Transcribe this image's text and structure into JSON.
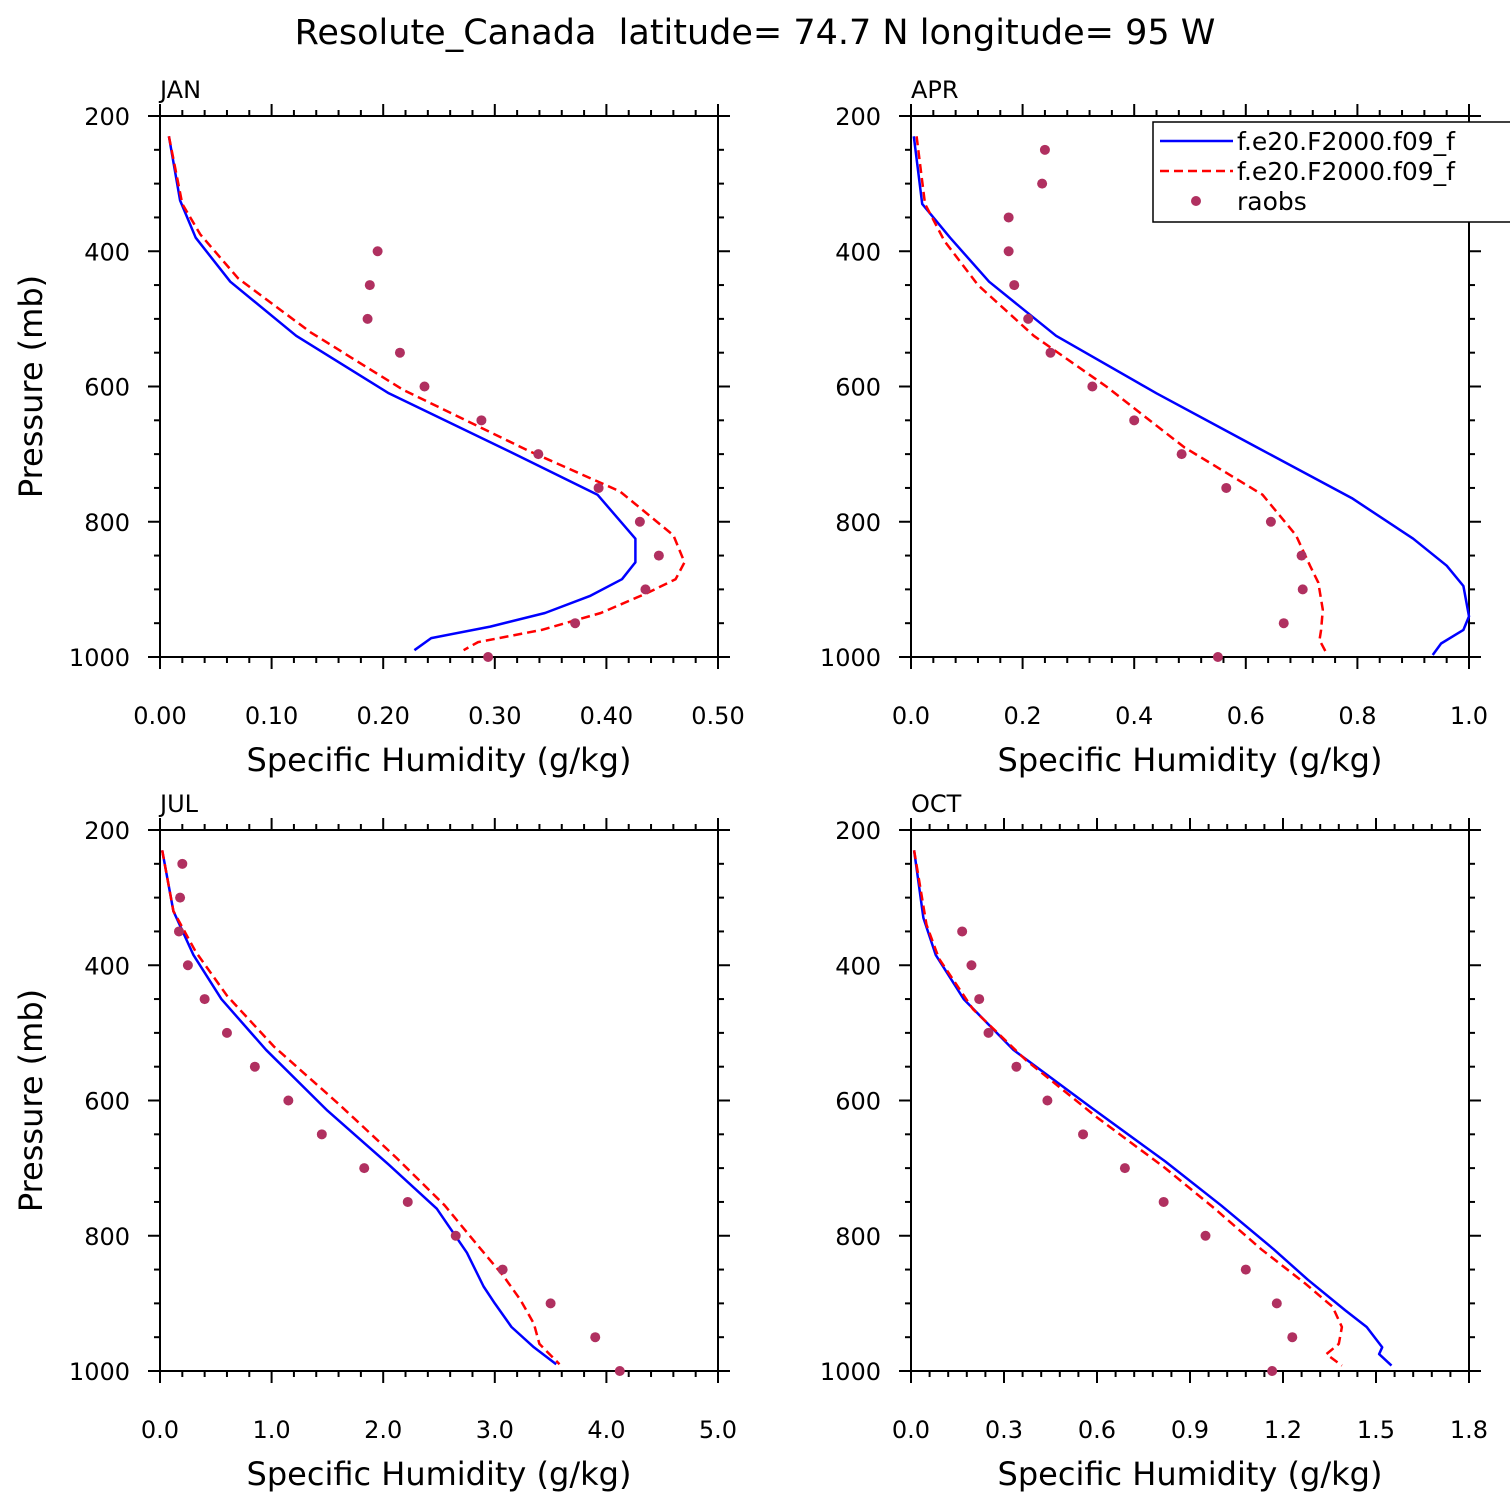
{
  "figure": {
    "title": "Resolute_Canada  latitude= 74.7 N longitude= 95 W"
  },
  "legend": {
    "entries": [
      {
        "label": "f.e20.F2000.f09_f",
        "style": "solid",
        "color": "#0000ff"
      },
      {
        "label": "f.e20.F2000.f09_f",
        "style": "dashed",
        "color": "#ff0000"
      },
      {
        "label": "raobs",
        "style": "dot",
        "color": "#b03060"
      }
    ]
  },
  "chart_data": [
    {
      "type": "line",
      "panel_label": "JAN",
      "xlabel": "Specific Humidity (g/kg)",
      "ylabel": "Pressure (mb)",
      "xlim": [
        0,
        0.5
      ],
      "ylim": [
        200,
        1000
      ],
      "y_reversed": true,
      "xticks": [
        0,
        0.1,
        0.2,
        0.3,
        0.4,
        0.5
      ],
      "xtick_labels": [
        "0.00",
        "0.10",
        "0.20",
        "0.30",
        "0.40",
        "0.50"
      ],
      "yticks": [
        200,
        400,
        600,
        800,
        1000
      ],
      "ytick_labels": [
        "200",
        "400",
        "600",
        "800",
        "1000"
      ],
      "series": [
        {
          "style": "solid",
          "color": "#0000ff",
          "points": [
            [
              0.008,
              230
            ],
            [
              0.018,
              325
            ],
            [
              0.032,
              380
            ],
            [
              0.063,
              445
            ],
            [
              0.122,
              525
            ],
            [
              0.205,
              610
            ],
            [
              0.318,
              700
            ],
            [
              0.392,
              760
            ],
            [
              0.426,
              825
            ],
            [
              0.426,
              860
            ],
            [
              0.414,
              885
            ],
            [
              0.385,
              910
            ],
            [
              0.345,
              935
            ],
            [
              0.296,
              955
            ],
            [
              0.243,
              972
            ],
            [
              0.228,
              990
            ]
          ]
        },
        {
          "style": "dashed",
          "color": "#ff0000",
          "points": [
            [
              0.008,
              230
            ],
            [
              0.02,
              330
            ],
            [
              0.036,
              375
            ],
            [
              0.07,
              440
            ],
            [
              0.135,
              520
            ],
            [
              0.218,
              605
            ],
            [
              0.33,
              695
            ],
            [
              0.412,
              755
            ],
            [
              0.46,
              820
            ],
            [
              0.47,
              860
            ],
            [
              0.462,
              885
            ],
            [
              0.437,
              905
            ],
            [
              0.395,
              935
            ],
            [
              0.342,
              960
            ],
            [
              0.285,
              978
            ],
            [
              0.272,
              990
            ]
          ]
        },
        {
          "style": "dot",
          "color": "#b03060",
          "points": [
            [
              0.195,
              400
            ],
            [
              0.188,
              450
            ],
            [
              0.186,
              500
            ],
            [
              0.215,
              550
            ],
            [
              0.237,
              600
            ],
            [
              0.288,
              650
            ],
            [
              0.339,
              700
            ],
            [
              0.393,
              750
            ],
            [
              0.43,
              800
            ],
            [
              0.447,
              850
            ],
            [
              0.435,
              900
            ],
            [
              0.372,
              950
            ],
            [
              0.294,
              1000
            ]
          ]
        }
      ]
    },
    {
      "type": "line",
      "panel_label": "APR",
      "xlabel": "Specific Humidity (g/kg)",
      "ylabel": "",
      "xlim": [
        0,
        1.0
      ],
      "ylim": [
        200,
        1000
      ],
      "y_reversed": true,
      "xticks": [
        0,
        0.2,
        0.4,
        0.6,
        0.8,
        1.0
      ],
      "xtick_labels": [
        "0.0",
        "0.2",
        "0.4",
        "0.6",
        "0.8",
        "1.0"
      ],
      "yticks": [
        200,
        400,
        600,
        800,
        1000
      ],
      "ytick_labels": [
        "200",
        "400",
        "600",
        "800",
        "1000"
      ],
      "series": [
        {
          "style": "solid",
          "color": "#0000ff",
          "points": [
            [
              0.005,
              230
            ],
            [
              0.02,
              330
            ],
            [
              0.07,
              380
            ],
            [
              0.14,
              445
            ],
            [
              0.26,
              525
            ],
            [
              0.44,
              610
            ],
            [
              0.62,
              690
            ],
            [
              0.79,
              765
            ],
            [
              0.9,
              825
            ],
            [
              0.96,
              865
            ],
            [
              0.99,
              895
            ],
            [
              1.0,
              940
            ],
            [
              0.99,
              960
            ],
            [
              0.95,
              980
            ],
            [
              0.935,
              997
            ]
          ]
        },
        {
          "style": "dashed",
          "color": "#ff0000",
          "points": [
            [
              0.01,
              230
            ],
            [
              0.025,
              330
            ],
            [
              0.06,
              385
            ],
            [
              0.12,
              450
            ],
            [
              0.22,
              525
            ],
            [
              0.35,
              600
            ],
            [
              0.49,
              690
            ],
            [
              0.63,
              760
            ],
            [
              0.69,
              820
            ],
            [
              0.715,
              865
            ],
            [
              0.73,
              890
            ],
            [
              0.738,
              930
            ],
            [
              0.735,
              960
            ],
            [
              0.732,
              975
            ],
            [
              0.745,
              995
            ]
          ]
        },
        {
          "style": "dot",
          "color": "#b03060",
          "points": [
            [
              0.24,
              250
            ],
            [
              0.235,
              300
            ],
            [
              0.175,
              350
            ],
            [
              0.175,
              400
            ],
            [
              0.185,
              450
            ],
            [
              0.21,
              500
            ],
            [
              0.25,
              550
            ],
            [
              0.325,
              600
            ],
            [
              0.4,
              650
            ],
            [
              0.485,
              700
            ],
            [
              0.565,
              750
            ],
            [
              0.645,
              800
            ],
            [
              0.7,
              850
            ],
            [
              0.702,
              900
            ],
            [
              0.668,
              950
            ],
            [
              0.55,
              1000
            ]
          ]
        }
      ]
    },
    {
      "type": "line",
      "panel_label": "JUL",
      "xlabel": "Specific Humidity (g/kg)",
      "ylabel": "Pressure (mb)",
      "xlim": [
        0,
        5.0
      ],
      "ylim": [
        200,
        1000
      ],
      "y_reversed": true,
      "xticks": [
        0,
        1,
        2,
        3,
        4,
        5
      ],
      "xtick_labels": [
        "0.0",
        "1.0",
        "2.0",
        "3.0",
        "4.0",
        "5.0"
      ],
      "yticks": [
        200,
        400,
        600,
        800,
        1000
      ],
      "ytick_labels": [
        "200",
        "400",
        "600",
        "800",
        "1000"
      ],
      "series": [
        {
          "style": "solid",
          "color": "#0000ff",
          "points": [
            [
              0.02,
              230
            ],
            [
              0.12,
              320
            ],
            [
              0.3,
              385
            ],
            [
              0.55,
              450
            ],
            [
              0.95,
              525
            ],
            [
              1.5,
              615
            ],
            [
              2.05,
              695
            ],
            [
              2.48,
              760
            ],
            [
              2.75,
              825
            ],
            [
              2.9,
              875
            ],
            [
              3.0,
              900
            ],
            [
              3.15,
              935
            ],
            [
              3.35,
              965
            ],
            [
              3.55,
              990
            ]
          ]
        },
        {
          "style": "dashed",
          "color": "#ff0000",
          "points": [
            [
              0.02,
              230
            ],
            [
              0.12,
              320
            ],
            [
              0.32,
              380
            ],
            [
              0.6,
              445
            ],
            [
              1.02,
              520
            ],
            [
              1.6,
              605
            ],
            [
              2.12,
              685
            ],
            [
              2.55,
              755
            ],
            [
              2.85,
              815
            ],
            [
              3.08,
              860
            ],
            [
              3.23,
              895
            ],
            [
              3.35,
              930
            ],
            [
              3.4,
              960
            ],
            [
              3.58,
              990
            ]
          ]
        },
        {
          "style": "dot",
          "color": "#b03060",
          "points": [
            [
              0.2,
              250
            ],
            [
              0.18,
              300
            ],
            [
              0.17,
              350
            ],
            [
              0.25,
              400
            ],
            [
              0.4,
              450
            ],
            [
              0.6,
              500
            ],
            [
              0.85,
              550
            ],
            [
              1.15,
              600
            ],
            [
              1.45,
              650
            ],
            [
              1.83,
              700
            ],
            [
              2.22,
              750
            ],
            [
              2.65,
              800
            ],
            [
              3.07,
              850
            ],
            [
              3.5,
              900
            ],
            [
              3.9,
              950
            ],
            [
              4.12,
              1000
            ]
          ]
        }
      ]
    },
    {
      "type": "line",
      "panel_label": "OCT",
      "xlabel": "Specific Humidity (g/kg)",
      "ylabel": "",
      "xlim": [
        0,
        1.8
      ],
      "ylim": [
        200,
        1000
      ],
      "y_reversed": true,
      "xticks": [
        0,
        0.3,
        0.6,
        0.9,
        1.2,
        1.5,
        1.8
      ],
      "xtick_labels": [
        "0.0",
        "0.3",
        "0.6",
        "0.9",
        "1.2",
        "1.5",
        "1.8"
      ],
      "yticks": [
        200,
        400,
        600,
        800,
        1000
      ],
      "ytick_labels": [
        "200",
        "400",
        "600",
        "800",
        "1000"
      ],
      "series": [
        {
          "style": "solid",
          "color": "#0000ff",
          "points": [
            [
              0.01,
              230
            ],
            [
              0.04,
              330
            ],
            [
              0.08,
              385
            ],
            [
              0.17,
              450
            ],
            [
              0.33,
              525
            ],
            [
              0.58,
              610
            ],
            [
              0.82,
              690
            ],
            [
              1.0,
              755
            ],
            [
              1.17,
              820
            ],
            [
              1.28,
              865
            ],
            [
              1.4,
              910
            ],
            [
              1.47,
              935
            ],
            [
              1.52,
              965
            ],
            [
              1.51,
              975
            ],
            [
              1.55,
              992
            ]
          ]
        },
        {
          "style": "dashed",
          "color": "#ff0000",
          "points": [
            [
              0.01,
              230
            ],
            [
              0.05,
              340
            ],
            [
              0.09,
              390
            ],
            [
              0.2,
              465
            ],
            [
              0.37,
              540
            ],
            [
              0.6,
              625
            ],
            [
              0.82,
              700
            ],
            [
              0.98,
              760
            ],
            [
              1.13,
              820
            ],
            [
              1.27,
              870
            ],
            [
              1.36,
              905
            ],
            [
              1.39,
              935
            ],
            [
              1.38,
              960
            ],
            [
              1.34,
              975
            ],
            [
              1.39,
              992
            ]
          ]
        },
        {
          "style": "dot",
          "color": "#b03060",
          "points": [
            [
              0.165,
              350
            ],
            [
              0.195,
              400
            ],
            [
              0.22,
              450
            ],
            [
              0.25,
              500
            ],
            [
              0.34,
              550
            ],
            [
              0.44,
              600
            ],
            [
              0.555,
              650
            ],
            [
              0.69,
              700
            ],
            [
              0.815,
              750
            ],
            [
              0.95,
              800
            ],
            [
              1.08,
              850
            ],
            [
              1.18,
              900
            ],
            [
              1.23,
              950
            ],
            [
              1.165,
              1000
            ]
          ]
        }
      ]
    }
  ]
}
